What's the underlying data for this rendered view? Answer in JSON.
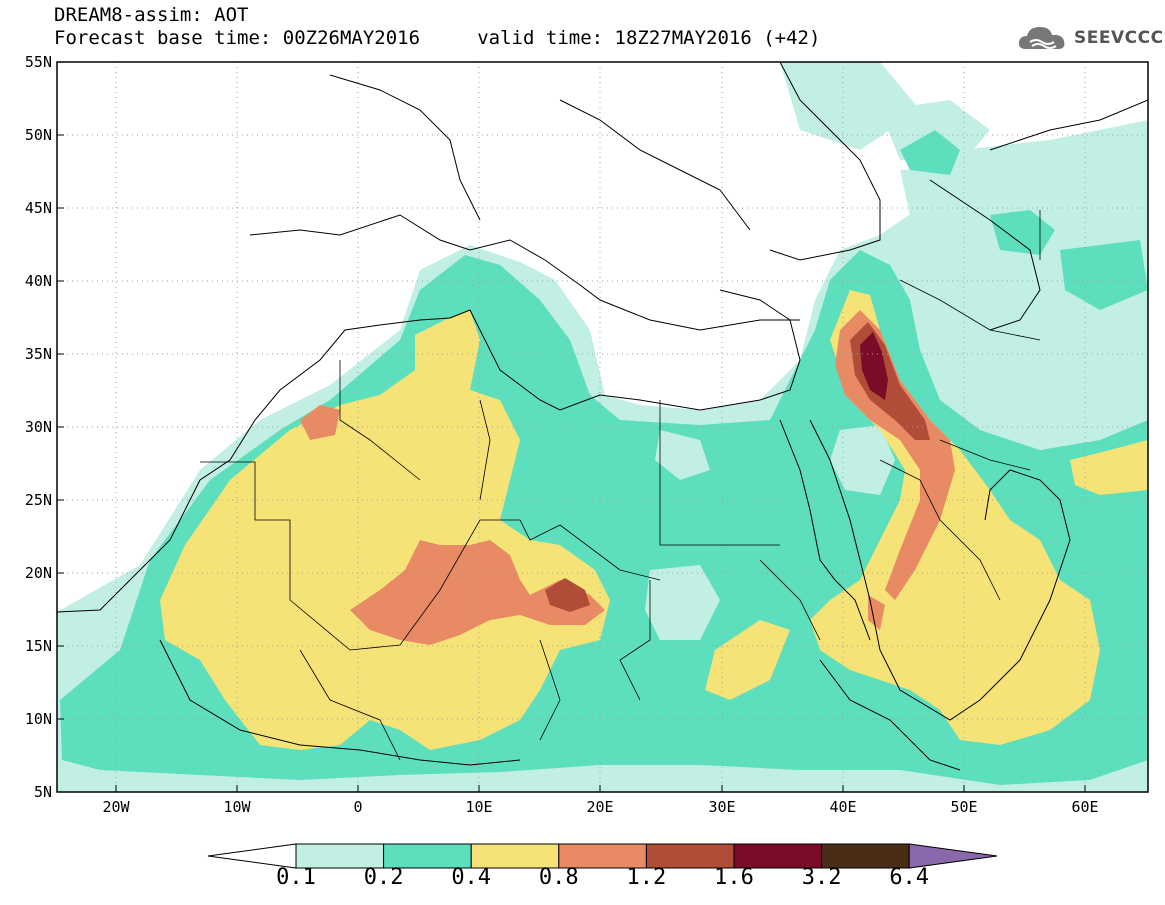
{
  "header": {
    "line1": "DREAM8-assim: AOT",
    "line2": "Forecast base time: 00Z26MAY2016     valid time: 18Z27MAY2016 (+42)",
    "logo_text": "SEEVCCC"
  },
  "map": {
    "extent": {
      "lon": [
        -25,
        65
      ],
      "lat": [
        5,
        55
      ]
    },
    "lat_labels": [
      "55N",
      "50N",
      "45N",
      "40N",
      "35N",
      "30N",
      "25N",
      "20N",
      "15N",
      "10N",
      "5N"
    ],
    "lon_labels": [
      "20W",
      "10W",
      "0",
      "10E",
      "20E",
      "30E",
      "40E",
      "50E",
      "60E"
    ],
    "grid": "dotted"
  },
  "colorbar": {
    "labels": [
      "0.1",
      "0.2",
      "0.4",
      "0.8",
      "1.2",
      "1.6",
      "3.2",
      "6.4"
    ],
    "colors": [
      "#ffffff",
      "#c2efe4",
      "#5ddfbd",
      "#f6e377",
      "#e88a63",
      "#b14c39",
      "#7a0c27",
      "#4a2d17",
      "#8a68ac"
    ]
  }
}
